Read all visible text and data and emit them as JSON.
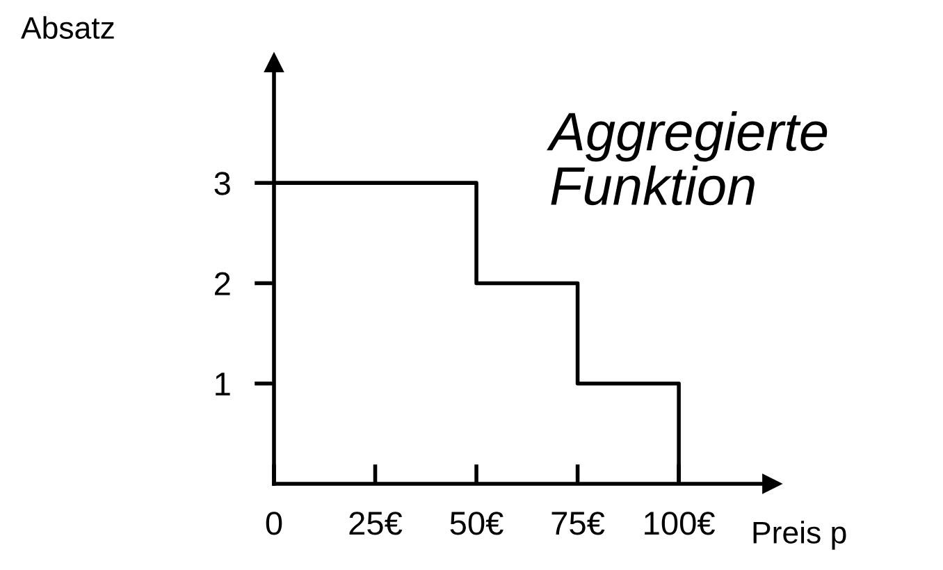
{
  "chart_data": {
    "type": "step",
    "x": [
      0,
      50,
      75,
      100
    ],
    "values": [
      3,
      2,
      1,
      0
    ],
    "color": "#000000",
    "xlim": [
      0,
      123
    ],
    "ylim": [
      0,
      4.2
    ],
    "xticks": [
      0,
      {
        "value": 25,
        "label": "25€"
      },
      {
        "value": 50,
        "label": "50€"
      },
      {
        "value": 75,
        "label": "75€"
      },
      {
        "value": 100,
        "label": "100€"
      }
    ],
    "yticks": [
      1,
      2,
      3
    ],
    "xlabel": "Preis p",
    "ylabel": "Absatz",
    "annotations": [
      "Aggregierte\nFunktion"
    ],
    "grid": false,
    "legend": false
  }
}
